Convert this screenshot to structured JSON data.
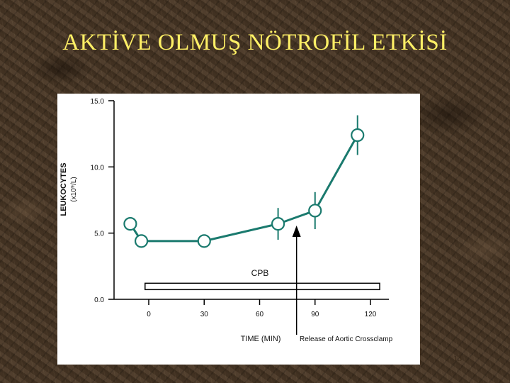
{
  "slide": {
    "title": "AKTİVE OLMUŞ NÖTROFİL ETKİSİ",
    "page_number": "13"
  },
  "colors": {
    "title": "#fff066",
    "series": "#1a7a6e",
    "panel": "#ffffff"
  },
  "chart_data": {
    "type": "line",
    "ylabel": "LEUKOCYTES",
    "ylabel_unit": "(x10⁹/L)",
    "xlabel": "TIME (MIN)",
    "ylim": [
      0,
      15
    ],
    "xlim": [
      -20,
      130
    ],
    "y_ticks": [
      "15.0",
      "10.0",
      "5.0",
      "0.0"
    ],
    "y_tick_values": [
      15,
      10,
      5,
      0
    ],
    "x_ticks": [
      "0",
      "30",
      "60",
      "90",
      "120"
    ],
    "x_tick_values": [
      0,
      30,
      60,
      90,
      120
    ],
    "grid": false,
    "series": [
      {
        "x": [
          -10,
          -4,
          30,
          70,
          90,
          113
        ],
        "y": [
          5.7,
          4.4,
          4.4,
          5.7,
          6.7,
          12.4
        ],
        "error": [
          0,
          0,
          0,
          1.2,
          1.4,
          1.5
        ]
      }
    ],
    "annotations": {
      "bar_label": "CPB",
      "bar_start": -2,
      "bar_end": 125,
      "bar_level": 1.0,
      "arrow_label": "Release of Aortic Crossclamp",
      "arrow_x": 80
    }
  }
}
